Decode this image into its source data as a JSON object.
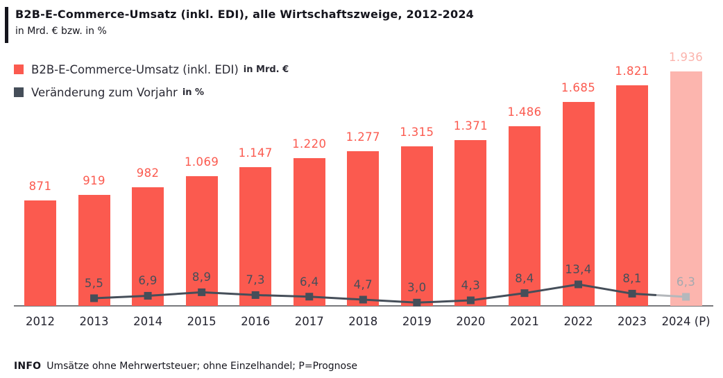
{
  "header": {
    "title": "B2B-E-Commerce-Umsatz (inkl. EDI), alle Wirtschaftszweige, 2012-2024",
    "subtitle": "in Mrd. € bzw. in %"
  },
  "legend": [
    {
      "label": "B2B-E-Commerce-Umsatz (inkl. EDI)",
      "unit": "in Mrd. €",
      "color": "#fb5a4f"
    },
    {
      "label": "Veränderung zum Vorjahr",
      "unit": "in %",
      "color": "#454e59"
    }
  ],
  "chart_data": {
    "type": "bar+line",
    "title": "B2B-E-Commerce-Umsatz (inkl. EDI), alle Wirtschaftszweige, 2012-2024",
    "subtitle": "in Mrd. € bzw. in %",
    "categories": [
      "2012",
      "2013",
      "2014",
      "2015",
      "2016",
      "2017",
      "2018",
      "2019",
      "2020",
      "2021",
      "2022",
      "2023",
      "2024 (P)"
    ],
    "series": [
      {
        "name": "B2B-E-Commerce-Umsatz (inkl. EDI) in Mrd. €",
        "type": "bar",
        "values": [
          871,
          919,
          982,
          1069,
          1147,
          1220,
          1277,
          1315,
          1371,
          1486,
          1685,
          1821,
          1936
        ],
        "labels": [
          "871",
          "919",
          "982",
          "1.069",
          "1.147",
          "1.220",
          "1.277",
          "1.315",
          "1.371",
          "1.486",
          "1.685",
          "1.821",
          "1.936"
        ]
      },
      {
        "name": "Veränderung zum Vorjahr in %",
        "type": "line",
        "values": [
          null,
          5.5,
          6.9,
          8.9,
          7.3,
          6.4,
          4.7,
          3.0,
          4.3,
          8.4,
          13.4,
          8.1,
          6.3
        ],
        "labels": [
          null,
          "5,5",
          "6,9",
          "8,9",
          "7,3",
          "6,4",
          "4,7",
          "3,0",
          "4,3",
          "8,4",
          "13,4",
          "8,1",
          "6,3"
        ]
      }
    ],
    "prognosis_index": 12,
    "legend_position": "top-left",
    "grid": false,
    "colors": {
      "bar": "#fb5a4f",
      "bar_prognosis": "#fcb5ae",
      "bar_label": "#fb5a4f",
      "bar_label_prognosis": "#fbb3ac",
      "line": "#454e59",
      "line_prognosis": "#b4b8bc",
      "pct_label": "#454e59",
      "pct_label_prognosis": "#a3a9af",
      "axis": "#77787c"
    }
  },
  "footer": {
    "info_label": "INFO",
    "info_text": "Umsätze ohne Mehrwertsteuer; ohne Einzelhandel; P=Prognose"
  }
}
